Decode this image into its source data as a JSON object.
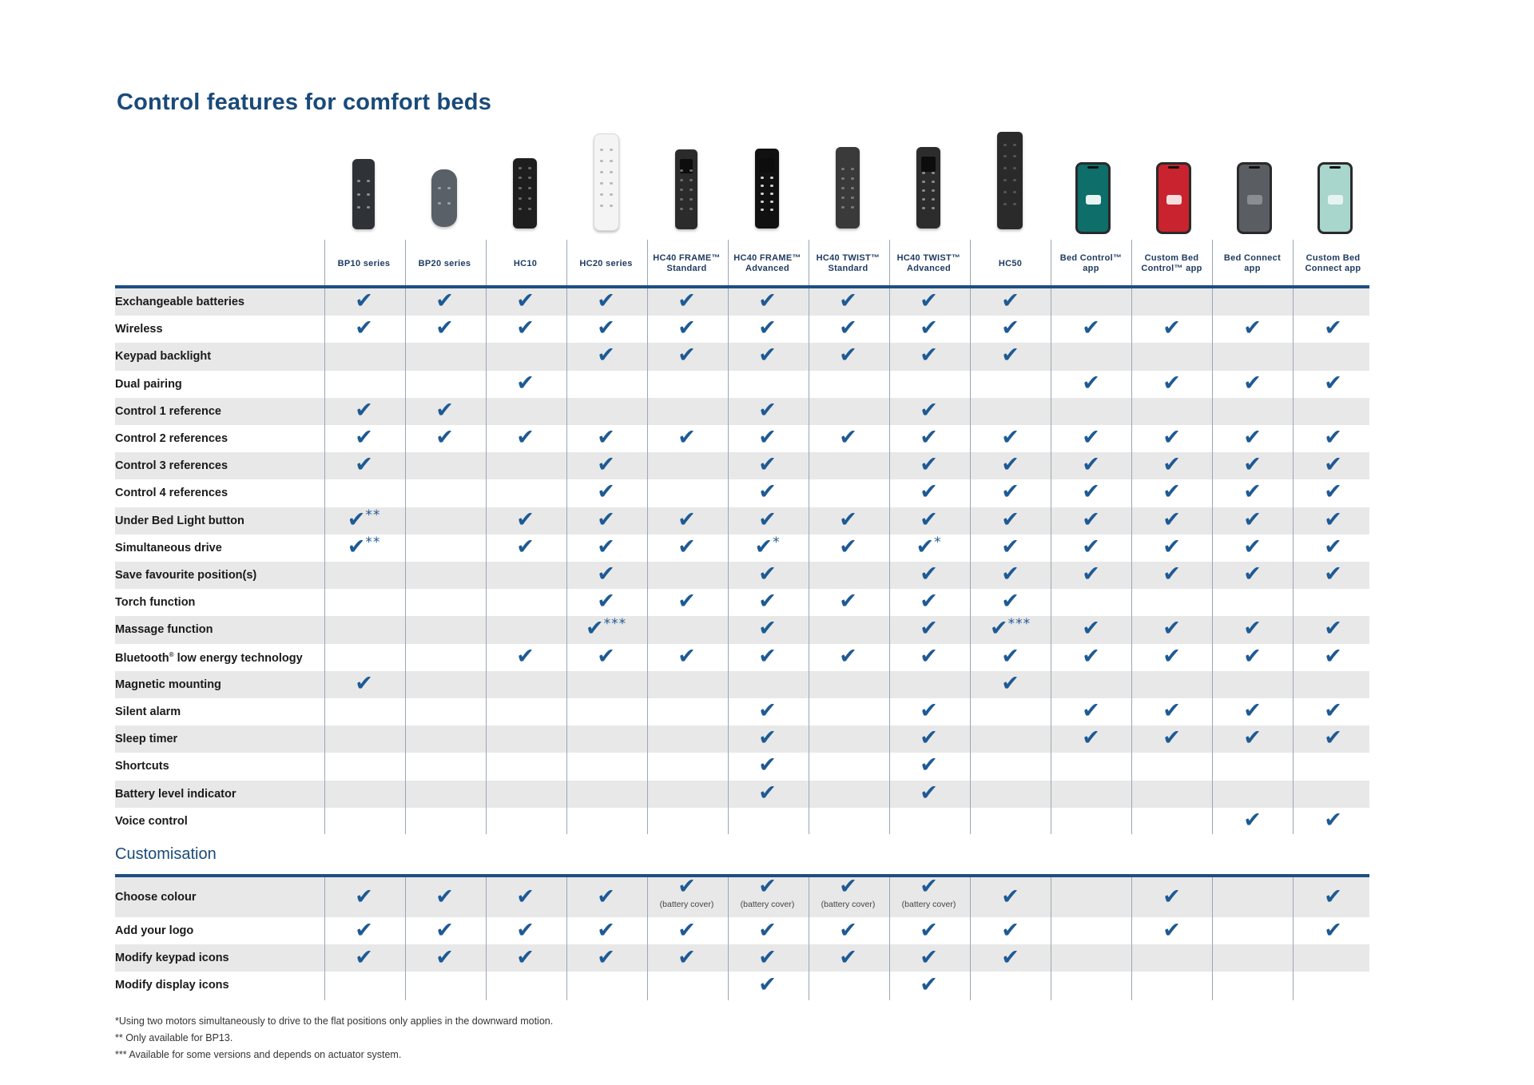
{
  "title": "Control features for comfort beds",
  "columns": [
    {
      "line1": "BP10 series",
      "line2": "",
      "icon": "bp10-remote-icon"
    },
    {
      "line1": "BP20 series",
      "line2": "",
      "icon": "bp20-remote-icon"
    },
    {
      "line1": "HC10",
      "line2": "",
      "icon": "hc10-remote-icon"
    },
    {
      "line1": "HC20 series",
      "line2": "",
      "icon": "hc20-remote-icon"
    },
    {
      "line1": "HC40 FRAME™",
      "line2": "Standard",
      "icon": "hc40-frame-standard-remote-icon"
    },
    {
      "line1": "HC40 FRAME™",
      "line2": "Advanced",
      "icon": "hc40-frame-advanced-remote-icon"
    },
    {
      "line1": "HC40 TWIST™",
      "line2": "Standard",
      "icon": "hc40-twist-standard-remote-icon"
    },
    {
      "line1": "HC40 TWIST™",
      "line2": "Advanced",
      "icon": "hc40-twist-advanced-remote-icon"
    },
    {
      "line1": "HC50",
      "line2": "",
      "icon": "hc50-remote-icon"
    },
    {
      "line1": "Bed Control™",
      "line2": "app",
      "icon": "bed-control-app-phone-icon"
    },
    {
      "line1": "Custom Bed",
      "line2": "Control™ app",
      "icon": "custom-bed-control-app-phone-icon"
    },
    {
      "line1": "Bed Connect",
      "line2": "app",
      "icon": "bed-connect-app-phone-icon"
    },
    {
      "line1": "Custom Bed",
      "line2": "Connect app",
      "icon": "custom-bed-connect-app-phone-icon"
    }
  ],
  "check_symbol": "✔",
  "features": [
    {
      "label": "Exchangeable batteries",
      "marks": [
        "✔",
        "✔",
        "✔",
        "✔",
        "✔",
        "✔",
        "✔",
        "✔",
        "✔",
        "",
        "",
        "",
        ""
      ]
    },
    {
      "label": "Wireless",
      "marks": [
        "✔",
        "✔",
        "✔",
        "✔",
        "✔",
        "✔",
        "✔",
        "✔",
        "✔",
        "✔",
        "✔",
        "✔",
        "✔"
      ]
    },
    {
      "label": "Keypad backlight",
      "marks": [
        "",
        "",
        "",
        "✔",
        "✔",
        "✔",
        "✔",
        "✔",
        "✔",
        "",
        "",
        "",
        ""
      ]
    },
    {
      "label": "Dual pairing",
      "marks": [
        "",
        "",
        "✔",
        "",
        "",
        "",
        "",
        "",
        "",
        "✔",
        "✔",
        "✔",
        "✔"
      ]
    },
    {
      "label": "Control 1 reference",
      "marks": [
        "✔",
        "✔",
        "",
        "",
        "",
        "✔",
        "",
        "✔",
        "",
        "",
        "",
        "",
        ""
      ]
    },
    {
      "label": "Control 2 references",
      "marks": [
        "✔",
        "✔",
        "✔",
        "✔",
        "✔",
        "✔",
        "✔",
        "✔",
        "✔",
        "✔",
        "✔",
        "✔",
        "✔"
      ]
    },
    {
      "label": "Control 3 references",
      "marks": [
        "✔",
        "",
        "",
        "✔",
        "",
        "✔",
        "",
        "✔",
        "✔",
        "✔",
        "✔",
        "✔",
        "✔"
      ]
    },
    {
      "label": "Control 4 references",
      "marks": [
        "",
        "",
        "",
        "✔",
        "",
        "✔",
        "",
        "✔",
        "✔",
        "✔",
        "✔",
        "✔",
        "✔"
      ]
    },
    {
      "label": "Under Bed Light button",
      "marks": [
        "✔**",
        "",
        "✔",
        "✔",
        "✔",
        "✔",
        "✔",
        "✔",
        "✔",
        "✔",
        "✔",
        "✔",
        "✔"
      ]
    },
    {
      "label": "Simultaneous drive",
      "marks": [
        "✔**",
        "",
        "✔",
        "✔",
        "✔",
        "✔*",
        "✔",
        "✔*",
        "✔",
        "✔",
        "✔",
        "✔",
        "✔"
      ]
    },
    {
      "label": "Save favourite position(s)",
      "marks": [
        "",
        "",
        "",
        "✔",
        "",
        "✔",
        "",
        "✔",
        "✔",
        "✔",
        "✔",
        "✔",
        "✔"
      ]
    },
    {
      "label": "Torch function",
      "marks": [
        "",
        "",
        "",
        "✔",
        "✔",
        "✔",
        "✔",
        "✔",
        "✔",
        "",
        "",
        "",
        ""
      ]
    },
    {
      "label": "Massage function",
      "marks": [
        "",
        "",
        "",
        "✔***",
        "",
        "✔",
        "",
        "✔",
        "✔***",
        "✔",
        "✔",
        "✔",
        "✔"
      ]
    },
    {
      "label": "Bluetooth",
      "sup": "®",
      "label_rest": " low energy technology",
      "marks": [
        "",
        "",
        "✔",
        "✔",
        "✔",
        "✔",
        "✔",
        "✔",
        "✔",
        "✔",
        "✔",
        "✔",
        "✔"
      ]
    },
    {
      "label": "Magnetic mounting",
      "marks": [
        "✔",
        "",
        "",
        "",
        "",
        "",
        "",
        "",
        "✔",
        "",
        "",
        "",
        ""
      ]
    },
    {
      "label": "Silent alarm",
      "marks": [
        "",
        "",
        "",
        "",
        "",
        "✔",
        "",
        "✔",
        "",
        "✔",
        "✔",
        "✔",
        "✔"
      ]
    },
    {
      "label": "Sleep timer",
      "marks": [
        "",
        "",
        "",
        "",
        "",
        "✔",
        "",
        "✔",
        "",
        "✔",
        "✔",
        "✔",
        "✔"
      ]
    },
    {
      "label": "Shortcuts",
      "marks": [
        "",
        "",
        "",
        "",
        "",
        "✔",
        "",
        "✔",
        "",
        "",
        "",
        "",
        ""
      ]
    },
    {
      "label": "Battery level indicator",
      "marks": [
        "",
        "",
        "",
        "",
        "",
        "✔",
        "",
        "✔",
        "",
        "",
        "",
        "",
        ""
      ]
    },
    {
      "label": "Voice control",
      "marks": [
        "",
        "",
        "",
        "",
        "",
        "",
        "",
        "",
        "",
        "",
        "",
        "✔",
        "✔"
      ]
    }
  ],
  "customisation_title": "Customisation",
  "customisation": [
    {
      "label": "Choose colour",
      "marks": [
        "✔",
        "✔",
        "✔",
        "✔",
        "✔",
        "✔",
        "✔",
        "✔",
        "✔",
        "",
        "✔",
        "",
        "✔"
      ],
      "notes": [
        "",
        "",
        "",
        "",
        "(battery cover)",
        "(battery cover)",
        "(battery cover)",
        "(battery cover)",
        "",
        "",
        "",
        "",
        ""
      ]
    },
    {
      "label": "Add your logo",
      "marks": [
        "✔",
        "✔",
        "✔",
        "✔",
        "✔",
        "✔",
        "✔",
        "✔",
        "✔",
        "",
        "✔",
        "",
        "✔"
      ]
    },
    {
      "label": "Modify keypad icons",
      "marks": [
        "✔",
        "✔",
        "✔",
        "✔",
        "✔",
        "✔",
        "✔",
        "✔",
        "✔",
        "",
        "",
        "",
        ""
      ]
    },
    {
      "label": "Modify display icons",
      "marks": [
        "",
        "",
        "",
        "",
        "",
        "✔",
        "",
        "✔",
        "",
        "",
        "",
        "",
        ""
      ]
    }
  ],
  "footnotes": [
    "*Using two motors simultaneously to drive to the flat positions only applies in the downward motion.",
    "** Only available for BP13.",
    "*** Available for some versions and depends on actuator system."
  ]
}
